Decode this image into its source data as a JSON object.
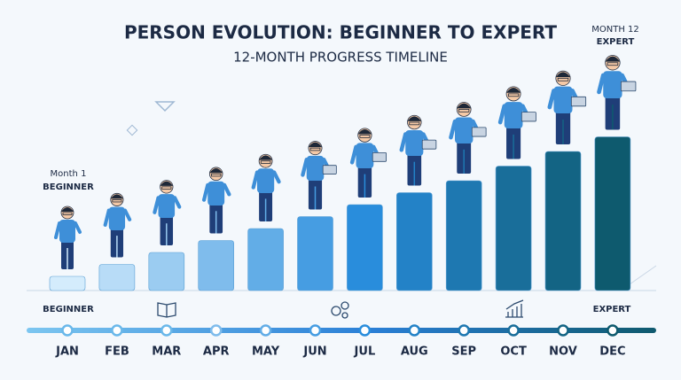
{
  "header": {
    "title": "PERSON EVOLUTION: BEGINNER TO EXPERT",
    "subtitle": "12-MONTH PROGRESS TIMELINE"
  },
  "start": {
    "month": "Month 1",
    "label": "BEGINNER"
  },
  "end": {
    "month": "MONTH 12",
    "label": "EXPERT"
  },
  "timeline": {
    "start_label": "BEGINNER",
    "end_label": "EXPERT",
    "months": [
      "JAN",
      "FEB",
      "MAR",
      "APR",
      "MAY",
      "JUN",
      "JUL",
      "AUG",
      "SEP",
      "OCT",
      "NOV",
      "DEC"
    ]
  }
}
